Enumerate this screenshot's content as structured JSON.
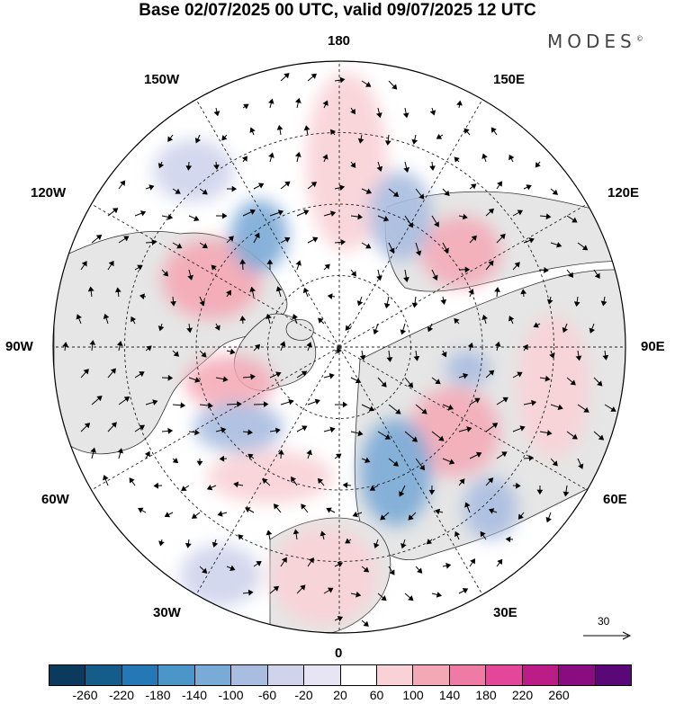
{
  "title": "Base 02/07/2025 00 UTC, valid 09/07/2025 12 UTC",
  "brand": "MODES",
  "brand_mark": "©",
  "longitude_labels": {
    "top": "180",
    "bottom": "0",
    "left": "90W",
    "right": "90E",
    "upper_left_1": "150W",
    "upper_left_2": "120W",
    "lower_left_1": "60W",
    "lower_left_2": "30W",
    "upper_right_1": "150E",
    "upper_right_2": "120E",
    "lower_right_1": "60E",
    "lower_right_2": "30E"
  },
  "reference_vector": {
    "value": "30"
  },
  "colorbar": {
    "colors": [
      "#0b3a5c",
      "#145d8a",
      "#2478b4",
      "#4b96c8",
      "#7aaad6",
      "#a9bde0",
      "#cfd4ec",
      "#e7e5f3",
      "#ffffff",
      "#f8d2d6",
      "#f4a7b4",
      "#ef7aa4",
      "#e2479a",
      "#bc1c85",
      "#8b0c80",
      "#5a0778"
    ],
    "ticks": [
      "-260",
      "-220",
      "-180",
      "-140",
      "-100",
      "-60",
      "-20",
      "20",
      "60",
      "100",
      "140",
      "180",
      "220",
      "260"
    ]
  },
  "colors": {
    "land": "#e6e6e6",
    "ocean": "#ffffff",
    "positive_light": "#f8d2d6",
    "positive_mid": "#f4a7b4",
    "positive_strong": "#e2479a",
    "negative_light": "#e7e5f3",
    "negative_mid": "#cfd4ec",
    "negative_strong": "#4b96c8"
  }
}
